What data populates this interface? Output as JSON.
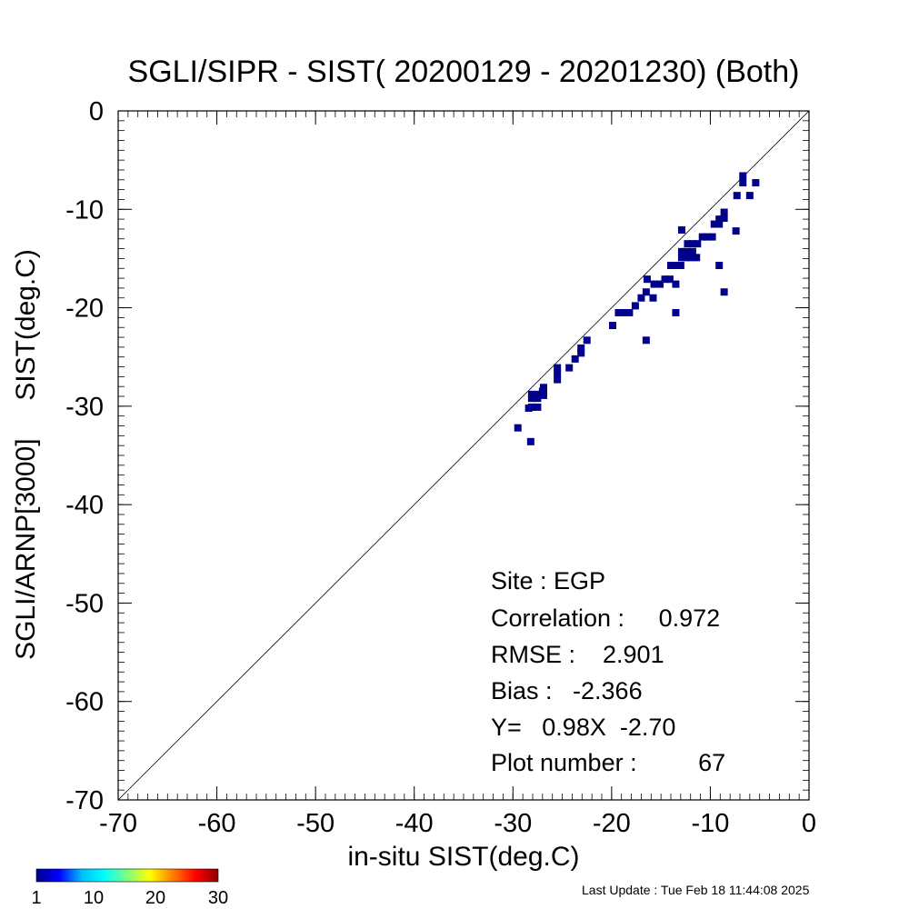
{
  "chart_data": {
    "type": "scatter",
    "title": "SGLI/SIPR - SIST( 20200129 - 20201230) (Both)",
    "xlabel": "in-situ SIST(deg.C)",
    "ylabel": "SGLI/ARNP[3000]     SIST(deg.C)",
    "xlim": [
      -70,
      0
    ],
    "ylim": [
      -70,
      0
    ],
    "xticks": [
      -70,
      -60,
      -50,
      -40,
      -30,
      -20,
      -10,
      0
    ],
    "yticks": [
      0,
      -10,
      -20,
      -30,
      -40,
      -50,
      -60,
      -70
    ],
    "grid": false,
    "reference_line": "y = x",
    "marker_color": "#00008b",
    "points": [
      {
        "x": -29.5,
        "y": -32.2
      },
      {
        "x": -28.2,
        "y": -33.6
      },
      {
        "x": -28.1,
        "y": -30.1
      },
      {
        "x": -28.1,
        "y": -29.2
      },
      {
        "x": -28.1,
        "y": -28.8
      },
      {
        "x": -27.5,
        "y": -30.1
      },
      {
        "x": -27.5,
        "y": -29.2
      },
      {
        "x": -27.5,
        "y": -28.8
      },
      {
        "x": -27.0,
        "y": -28.5
      },
      {
        "x": -26.9,
        "y": -28.9
      },
      {
        "x": -26.9,
        "y": -28.1
      },
      {
        "x": -25.5,
        "y": -27.3
      },
      {
        "x": -25.5,
        "y": -26.7
      },
      {
        "x": -25.5,
        "y": -26.1
      },
      {
        "x": -24.3,
        "y": -26.1
      },
      {
        "x": -23.7,
        "y": -25.2
      },
      {
        "x": -23.1,
        "y": -24.6
      },
      {
        "x": -23.1,
        "y": -24.1
      },
      {
        "x": -22.5,
        "y": -23.3
      },
      {
        "x": -19.9,
        "y": -21.8
      },
      {
        "x": -19.3,
        "y": -20.5
      },
      {
        "x": -18.8,
        "y": -20.5
      },
      {
        "x": -18.2,
        "y": -20.5
      },
      {
        "x": -17.6,
        "y": -19.8
      },
      {
        "x": -17.0,
        "y": -19.0
      },
      {
        "x": -16.5,
        "y": -23.3
      },
      {
        "x": -16.5,
        "y": -18.4
      },
      {
        "x": -16.4,
        "y": -17.1
      },
      {
        "x": -15.8,
        "y": -19.0
      },
      {
        "x": -15.7,
        "y": -17.6
      },
      {
        "x": -15.1,
        "y": -17.6
      },
      {
        "x": -14.6,
        "y": -17.1
      },
      {
        "x": -14.1,
        "y": -17.1
      },
      {
        "x": -14.0,
        "y": -15.7
      },
      {
        "x": -13.5,
        "y": -15.7
      },
      {
        "x": -13.5,
        "y": -20.5
      },
      {
        "x": -13.5,
        "y": -17.6
      },
      {
        "x": -13.0,
        "y": -15.7
      },
      {
        "x": -12.9,
        "y": -14.9
      },
      {
        "x": -12.9,
        "y": -14.3
      },
      {
        "x": -12.9,
        "y": -12.1
      },
      {
        "x": -12.5,
        "y": -14.9
      },
      {
        "x": -12.5,
        "y": -14.3
      },
      {
        "x": -12.3,
        "y": -13.5
      },
      {
        "x": -12.0,
        "y": -14.9
      },
      {
        "x": -11.8,
        "y": -14.3
      },
      {
        "x": -11.8,
        "y": -13.5
      },
      {
        "x": -11.4,
        "y": -14.9
      },
      {
        "x": -11.3,
        "y": -13.5
      },
      {
        "x": -10.8,
        "y": -12.8
      },
      {
        "x": -10.3,
        "y": -12.8
      },
      {
        "x": -9.8,
        "y": -12.8
      },
      {
        "x": -9.6,
        "y": -11.5
      },
      {
        "x": -9.1,
        "y": -15.7
      },
      {
        "x": -9.1,
        "y": -11.5
      },
      {
        "x": -9.1,
        "y": -11.0
      },
      {
        "x": -8.6,
        "y": -18.4
      },
      {
        "x": -8.6,
        "y": -10.9
      },
      {
        "x": -8.6,
        "y": -10.3
      },
      {
        "x": -7.4,
        "y": -12.2
      },
      {
        "x": -7.3,
        "y": -8.6
      },
      {
        "x": -6.7,
        "y": -7.3
      },
      {
        "x": -6.7,
        "y": -6.6
      },
      {
        "x": -6.0,
        "y": -8.6
      },
      {
        "x": -5.4,
        "y": -7.3
      },
      {
        "x": -28.4,
        "y": -30.2
      },
      {
        "x": -26.9,
        "y": -28.6
      }
    ],
    "annotations": [
      "Site : EGP",
      "Correlation :     0.972",
      "RMSE :    2.901",
      "Bias :   -2.366",
      "Y=   0.98X  -2.70",
      "Plot number :         67"
    ],
    "colorbar": {
      "ticks": [
        "1",
        "10",
        "20",
        "30"
      ],
      "colors": [
        "#00008b",
        "#0000ff",
        "#00bfff",
        "#00ffff",
        "#7fff7f",
        "#ffff00",
        "#ff7f00",
        "#ff0000",
        "#8b0000"
      ]
    }
  },
  "footer": {
    "last_update": "Last Update : Tue Feb 18 11:44:08 2025"
  }
}
